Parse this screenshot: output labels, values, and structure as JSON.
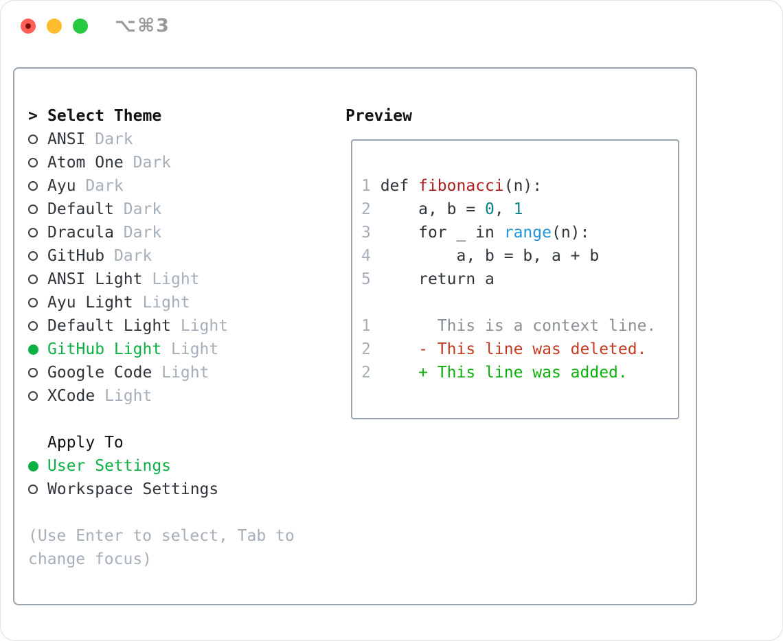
{
  "titlebar": {
    "shortcut": "⌥⌘3",
    "buttons": [
      "close",
      "minimize",
      "zoom"
    ]
  },
  "colors": {
    "selected_green": "#0cb043",
    "muted_gray": "#a6afb9",
    "text_dark": "#2f343a",
    "border_gray": "#9aa4ae",
    "func_red": "#ae1e1e",
    "deleted_red": "#c33a21",
    "added_green": "#0cb00c",
    "number_teal": "#0e7f86",
    "builtin_blue": "#2196d6",
    "traffic_red": "#ff5f57",
    "traffic_yellow": "#febc2e",
    "traffic_green": "#28c840"
  },
  "theme_picker": {
    "cursor": ">",
    "header": "Select Theme",
    "items": [
      {
        "label": "ANSI",
        "tag": "Dark",
        "selected": false
      },
      {
        "label": "Atom One",
        "tag": "Dark",
        "selected": false
      },
      {
        "label": "Ayu",
        "tag": "Dark",
        "selected": false
      },
      {
        "label": "Default",
        "tag": "Dark",
        "selected": false
      },
      {
        "label": "Dracula",
        "tag": "Dark",
        "selected": false
      },
      {
        "label": "GitHub",
        "tag": "Dark",
        "selected": false
      },
      {
        "label": "ANSI Light",
        "tag": "Light",
        "selected": false
      },
      {
        "label": "Ayu Light",
        "tag": "Light",
        "selected": false
      },
      {
        "label": "Default Light",
        "tag": "Light",
        "selected": false
      },
      {
        "label": "GitHub Light",
        "tag": "Light",
        "selected": true
      },
      {
        "label": "Google Code",
        "tag": "Light",
        "selected": false
      },
      {
        "label": "XCode",
        "tag": "Light",
        "selected": false
      }
    ]
  },
  "apply_to": {
    "header": "Apply To",
    "options": [
      {
        "label": "User Settings",
        "selected": true
      },
      {
        "label": "Workspace Settings",
        "selected": false
      }
    ]
  },
  "hint": {
    "line1": "(Use Enter to select, Tab to",
    "line2": "change focus)"
  },
  "preview": {
    "title": "Preview",
    "code_lines": [
      {
        "number": "1",
        "segments": [
          {
            "t": "def ",
            "c": "plain"
          },
          {
            "t": "fibonacci",
            "c": "func"
          },
          {
            "t": "(n):",
            "c": "plain"
          }
        ]
      },
      {
        "number": "2",
        "segments": [
          {
            "t": "    a, b = ",
            "c": "plain"
          },
          {
            "t": "0",
            "c": "num"
          },
          {
            "t": ", ",
            "c": "plain"
          },
          {
            "t": "1",
            "c": "num"
          }
        ]
      },
      {
        "number": "3",
        "segments": [
          {
            "t": "    for _ in ",
            "c": "plain"
          },
          {
            "t": "range",
            "c": "builtin"
          },
          {
            "t": "(n):",
            "c": "plain"
          }
        ]
      },
      {
        "number": "4",
        "segments": [
          {
            "t": "        a, b = b, a + b",
            "c": "plain"
          }
        ]
      },
      {
        "number": "5",
        "segments": [
          {
            "t": "    return a",
            "c": "plain"
          }
        ]
      }
    ],
    "diff_lines": [
      {
        "number": "1",
        "segments": [
          {
            "t": "      This is a context line.",
            "c": "context"
          }
        ]
      },
      {
        "number": "2",
        "segments": [
          {
            "t": "    - This line was deleted.",
            "c": "deleted"
          }
        ]
      },
      {
        "number": "2",
        "segments": [
          {
            "t": "    + This line was added.",
            "c": "added"
          }
        ]
      }
    ]
  }
}
